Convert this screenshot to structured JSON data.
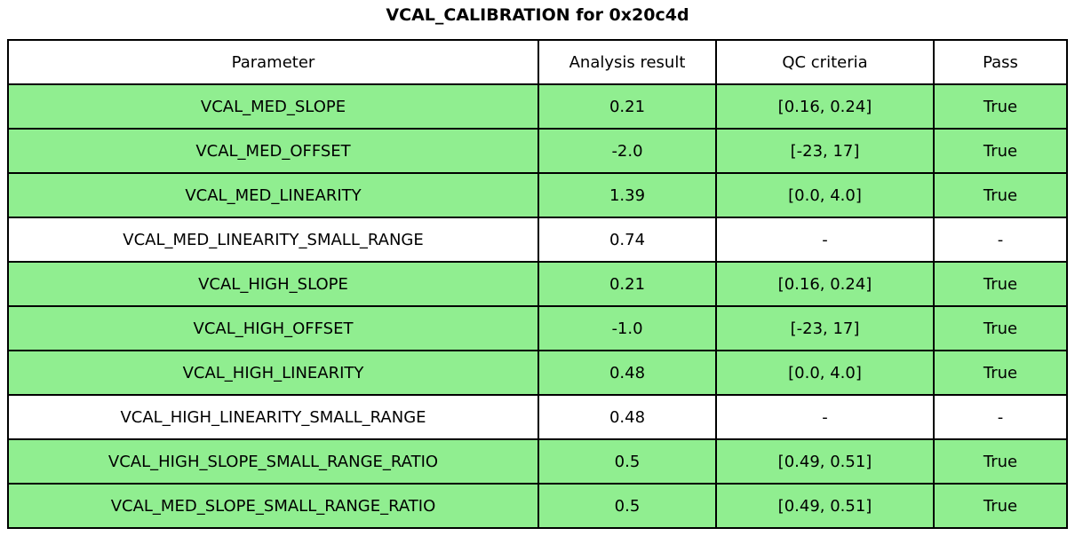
{
  "title": "VCAL_CALIBRATION for 0x20c4d",
  "chart_data": {
    "type": "table",
    "title": "VCAL_CALIBRATION for 0x20c4d",
    "columns": [
      "Parameter",
      "Analysis result",
      "QC criteria",
      "Pass"
    ],
    "rows": [
      {
        "parameter": "VCAL_MED_SLOPE",
        "result": "0.21",
        "criteria": "[0.16, 0.24]",
        "pass": "True",
        "highlight": true
      },
      {
        "parameter": "VCAL_MED_OFFSET",
        "result": "-2.0",
        "criteria": "[-23, 17]",
        "pass": "True",
        "highlight": true
      },
      {
        "parameter": "VCAL_MED_LINEARITY",
        "result": "1.39",
        "criteria": "[0.0, 4.0]",
        "pass": "True",
        "highlight": true
      },
      {
        "parameter": "VCAL_MED_LINEARITY_SMALL_RANGE",
        "result": "0.74",
        "criteria": "-",
        "pass": "-",
        "highlight": false
      },
      {
        "parameter": "VCAL_HIGH_SLOPE",
        "result": "0.21",
        "criteria": "[0.16, 0.24]",
        "pass": "True",
        "highlight": true
      },
      {
        "parameter": "VCAL_HIGH_OFFSET",
        "result": "-1.0",
        "criteria": "[-23, 17]",
        "pass": "True",
        "highlight": true
      },
      {
        "parameter": "VCAL_HIGH_LINEARITY",
        "result": "0.48",
        "criteria": "[0.0, 4.0]",
        "pass": "True",
        "highlight": true
      },
      {
        "parameter": "VCAL_HIGH_LINEARITY_SMALL_RANGE",
        "result": "0.48",
        "criteria": "-",
        "pass": "-",
        "highlight": false
      },
      {
        "parameter": "VCAL_HIGH_SLOPE_SMALL_RANGE_RATIO",
        "result": "0.5",
        "criteria": "[0.49, 0.51]",
        "pass": "True",
        "highlight": true
      },
      {
        "parameter": "VCAL_MED_SLOPE_SMALL_RANGE_RATIO",
        "result": "0.5",
        "criteria": "[0.49, 0.51]",
        "pass": "True",
        "highlight": true
      }
    ],
    "colors": {
      "pass_row_background": "#90ee90",
      "default_row_background": "#ffffff",
      "border": "#000000",
      "text": "#000000"
    }
  }
}
